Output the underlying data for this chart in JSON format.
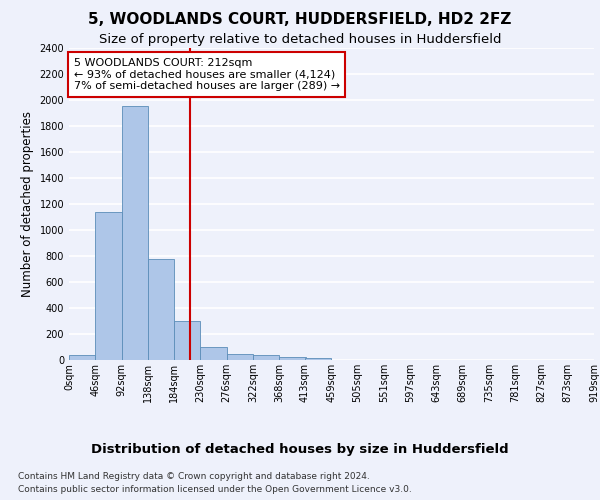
{
  "title": "5, WOODLANDS COURT, HUDDERSFIELD, HD2 2FZ",
  "subtitle": "Size of property relative to detached houses in Huddersfield",
  "xlabel": "Distribution of detached houses by size in Huddersfield",
  "ylabel": "Number of detached properties",
  "footnote1": "Contains HM Land Registry data © Crown copyright and database right 2024.",
  "footnote2": "Contains public sector information licensed under the Open Government Licence v3.0.",
  "bin_edges": [
    0,
    46,
    92,
    138,
    184,
    230,
    276,
    322,
    368,
    413,
    459,
    505,
    551,
    597,
    643,
    689,
    735,
    781,
    827,
    873,
    919
  ],
  "bar_heights": [
    35,
    1140,
    1950,
    775,
    300,
    100,
    45,
    40,
    25,
    15,
    0,
    0,
    0,
    0,
    0,
    0,
    0,
    0,
    0,
    0
  ],
  "bar_color": "#aec6e8",
  "bar_edge_color": "#5b8db8",
  "property_size": 212,
  "vline_color": "#cc0000",
  "annotation_text": "5 WOODLANDS COURT: 212sqm\n← 93% of detached houses are smaller (4,124)\n7% of semi-detached houses are larger (289) →",
  "annotation_box_color": "#ffffff",
  "annotation_box_edgecolor": "#cc0000",
  "ylim": [
    0,
    2400
  ],
  "yticks": [
    0,
    200,
    400,
    600,
    800,
    1000,
    1200,
    1400,
    1600,
    1800,
    2000,
    2200,
    2400
  ],
  "background_color": "#eef1fb",
  "grid_color": "#ffffff",
  "title_fontsize": 11,
  "subtitle_fontsize": 9.5,
  "xlabel_fontsize": 9.5,
  "ylabel_fontsize": 8.5,
  "tick_fontsize": 7,
  "annotation_fontsize": 8,
  "footnote_fontsize": 6.5
}
